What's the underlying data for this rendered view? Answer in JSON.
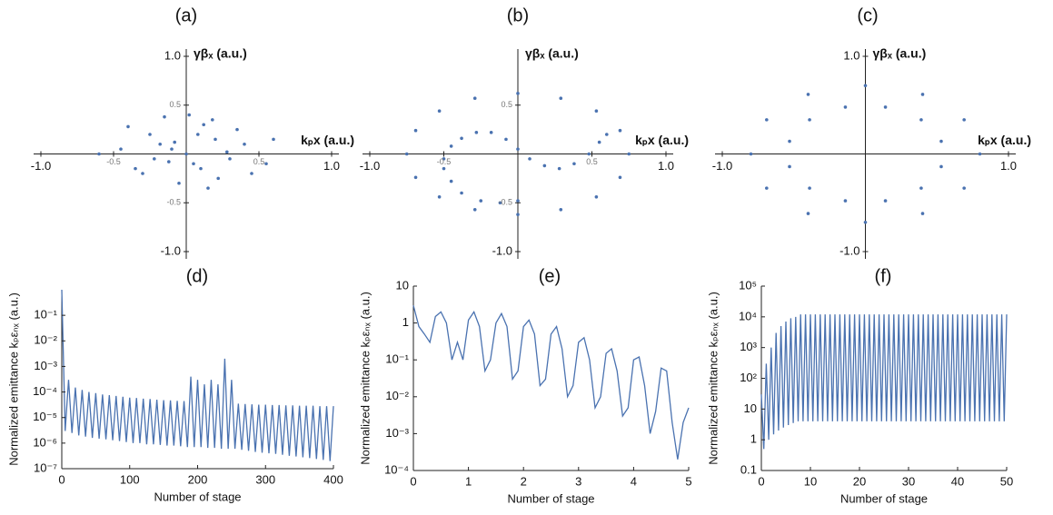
{
  "chart_data": [
    {
      "type": "scatter",
      "title": "(a)",
      "x_label": "kₚx (a.u.)",
      "y_label": "γβₓ (a.u.)",
      "color": "#4a72b0",
      "x": [
        -0.1,
        0.05,
        0.2,
        -0.25,
        0.3,
        -0.35,
        0.12,
        -0.05,
        0.4,
        -0.45,
        0.0,
        0.22,
        -0.18,
        0.08,
        -0.3,
        0.35,
        -0.12,
        0.15,
        -0.6,
        0.55,
        0.02,
        -0.08,
        0.28,
        -0.22,
        0.1,
        -0.4,
        0.45,
        0.18,
        -0.15,
        0.6
      ],
      "values": [
        0.05,
        -0.1,
        0.15,
        0.2,
        -0.05,
        -0.15,
        0.3,
        -0.3,
        0.1,
        0.05,
        0.0,
        -0.25,
        0.1,
        0.2,
        -0.2,
        0.25,
        -0.08,
        -0.35,
        0.0,
        -0.1,
        0.4,
        0.12,
        0.02,
        -0.05,
        -0.15,
        0.28,
        -0.2,
        0.35,
        0.38,
        0.15
      ],
      "xlim": [
        -1,
        1
      ],
      "ylim": [
        -1,
        1
      ],
      "xticks": [
        {
          "value": -1,
          "label": "-1.0"
        },
        {
          "value": -0.5,
          "label": "-0.5"
        },
        {
          "value": 0.5,
          "label": "0.5"
        },
        {
          "value": 1,
          "label": "1.0"
        }
      ],
      "yticks": [
        {
          "value": -1,
          "label": "-1.0"
        },
        {
          "value": -0.5,
          "label": "-0.5"
        },
        {
          "value": 0.5,
          "label": "0.5"
        },
        {
          "value": 1,
          "label": "1.0"
        }
      ]
    },
    {
      "type": "scatter",
      "title": "(b)",
      "x_label": "kₚx (a.u.)",
      "y_label": "γβₓ (a.u.)",
      "color": "#4a72b0",
      "x": [
        -0.5,
        -0.45,
        -0.38,
        -0.28,
        -0.18,
        -0.08,
        0,
        0.08,
        0.18,
        0.28,
        0.38,
        0.48,
        0.55,
        0.6,
        -0.5,
        -0.45,
        -0.38,
        -0.25,
        -0.12,
        0,
        0.75,
        0.69,
        0.53,
        0.29,
        0,
        -0.29,
        -0.53,
        -0.69,
        -0.75,
        -0.69,
        -0.53,
        -0.29,
        0,
        0.29,
        0.53,
        0.69
      ],
      "values": [
        -0.05,
        0.08,
        0.16,
        0.22,
        0.22,
        0.15,
        0.05,
        -0.05,
        -0.12,
        -0.15,
        -0.1,
        0.0,
        0.12,
        0.2,
        -0.15,
        -0.28,
        -0.4,
        -0.48,
        -0.5,
        -0.48,
        0,
        0.24,
        0.44,
        0.57,
        0.62,
        0.57,
        0.44,
        0.24,
        0,
        -0.24,
        -0.44,
        -0.57,
        -0.62,
        -0.57,
        -0.44,
        -0.24
      ],
      "xlim": [
        -1,
        1
      ],
      "ylim": [
        -1,
        1
      ],
      "xticks": [
        {
          "value": -1,
          "label": "-1.0"
        },
        {
          "value": -0.5,
          "label": "-0.5"
        },
        {
          "value": 0.5,
          "label": "0.5"
        },
        {
          "value": 1,
          "label": "1.0"
        }
      ],
      "yticks": [
        {
          "value": -1,
          "label": "-1.0"
        },
        {
          "value": -0.5,
          "label": "-0.5"
        },
        {
          "value": 0.5,
          "label": "0.5"
        }
      ]
    },
    {
      "type": "scatter",
      "title": "(c)",
      "x_label": "kₚx (a.u.)",
      "y_label": "γβₓ (a.u.)",
      "color": "#4a72b0",
      "x": [
        0.8,
        0.69,
        0.4,
        0,
        -0.4,
        -0.69,
        -0.8,
        -0.69,
        -0.4,
        0,
        0.4,
        0.69,
        0.53,
        0.39,
        0.14,
        -0.14,
        -0.39,
        -0.53,
        -0.53,
        -0.39,
        -0.14,
        0.14,
        0.39,
        0.53
      ],
      "values": [
        0,
        0.35,
        0.61,
        0.7,
        0.61,
        0.35,
        0,
        -0.35,
        -0.61,
        -0.7,
        -0.61,
        -0.35,
        0.13,
        0.35,
        0.48,
        0.48,
        0.35,
        0.13,
        -0.13,
        -0.35,
        -0.48,
        -0.48,
        -0.35,
        -0.13
      ],
      "xlim": [
        -1,
        1
      ],
      "ylim": [
        -1,
        1
      ],
      "xticks": [
        {
          "value": -1,
          "label": "-1.0"
        },
        {
          "value": 1,
          "label": "1.0"
        }
      ],
      "yticks": [
        {
          "value": -1,
          "label": "-1.0"
        },
        {
          "value": 1,
          "label": "1.0"
        }
      ]
    },
    {
      "type": "line",
      "title": "(d)",
      "x_label": "Number of stage",
      "y_label": "Normalized emittance kₚεₙₓ (a.u.)",
      "color": "#4a72b0",
      "log_y": true,
      "x": [
        0,
        5,
        10,
        15,
        20,
        25,
        30,
        35,
        40,
        45,
        50,
        55,
        60,
        65,
        70,
        75,
        80,
        85,
        90,
        95,
        100,
        105,
        110,
        115,
        120,
        125,
        130,
        135,
        140,
        145,
        150,
        155,
        160,
        165,
        170,
        175,
        180,
        185,
        190,
        195,
        200,
        205,
        210,
        215,
        220,
        225,
        230,
        235,
        240,
        245,
        250,
        255,
        260,
        265,
        270,
        275,
        280,
        285,
        290,
        295,
        300,
        305,
        310,
        315,
        320,
        325,
        330,
        335,
        340,
        345,
        350,
        355,
        360,
        365,
        370,
        375,
        380,
        385,
        390,
        395,
        400
      ],
      "values": [
        1,
        3e-06,
        0.0003,
        2.5e-06,
        0.00015,
        2e-06,
        0.00012,
        1.8e-06,
        0.0001,
        1.6e-06,
        9e-05,
        1.5e-06,
        8e-05,
        1.4e-06,
        7.5e-05,
        1.3e-06,
        7e-05,
        1.2e-06,
        6.5e-05,
        1.1e-06,
        6e-05,
        1e-06,
        5.8e-05,
        1e-06,
        5.5e-05,
        9e-07,
        5.3e-05,
        9e-07,
        5e-05,
        8.5e-07,
        4.8e-05,
        8e-07,
        4.7e-05,
        8e-07,
        4.5e-05,
        7.5e-07,
        4.4e-05,
        7e-07,
        0.0004,
        7e-07,
        0.0003,
        7e-07,
        0.0002,
        6.5e-07,
        0.0003,
        6.5e-07,
        0.0002,
        6e-07,
        0.002,
        6e-07,
        0.0003,
        6e-07,
        3.5e-05,
        5.5e-07,
        3.4e-05,
        5e-07,
        3.3e-05,
        4.5e-07,
        3.2e-05,
        4.2e-07,
        3.2e-05,
        4e-07,
        3.1e-05,
        3.8e-07,
        3.1e-05,
        3.5e-07,
        3e-05,
        3.2e-07,
        3e-05,
        3e-07,
        2.9e-05,
        2.8e-07,
        2.9e-05,
        2.6e-07,
        2.9e-05,
        2.4e-07,
        2.8e-05,
        2.2e-07,
        2.8e-05,
        2e-07,
        2.8e-05
      ],
      "xlim": [
        0,
        400
      ],
      "ylim": [
        1e-07,
        1
      ],
      "xticks": [
        0,
        100,
        200,
        300,
        400
      ],
      "yticks": [
        {
          "value": 1e-07,
          "label": "10⁻⁷"
        },
        {
          "value": 1e-06,
          "label": "10⁻⁶"
        },
        {
          "value": 1e-05,
          "label": "10⁻⁵"
        },
        {
          "value": 0.0001,
          "label": "10⁻⁴"
        },
        {
          "value": 0.001,
          "label": "10⁻³"
        },
        {
          "value": 0.01,
          "label": "10⁻²"
        },
        {
          "value": 0.1,
          "label": "10⁻¹"
        }
      ]
    },
    {
      "type": "line",
      "title": "(e)",
      "x_label": "Number of stage",
      "y_label": "Normalized emittance kₚεₙₓ (a.u.)",
      "color": "#4a72b0",
      "log_y": true,
      "x": [
        0,
        0.1,
        0.2,
        0.3,
        0.4,
        0.5,
        0.6,
        0.7,
        0.8,
        0.9,
        1,
        1.1,
        1.2,
        1.3,
        1.4,
        1.5,
        1.6,
        1.7,
        1.8,
        1.9,
        2,
        2.1,
        2.2,
        2.3,
        2.4,
        2.5,
        2.6,
        2.7,
        2.8,
        2.9,
        3,
        3.1,
        3.2,
        3.3,
        3.4,
        3.5,
        3.6,
        3.7,
        3.8,
        3.9,
        4,
        4.1,
        4.2,
        4.3,
        4.4,
        4.5,
        4.6,
        4.7,
        4.8,
        4.9,
        5
      ],
      "values": [
        3,
        0.8,
        0.5,
        0.3,
        1.5,
        2,
        1,
        0.1,
        0.3,
        0.1,
        1.2,
        2,
        0.8,
        0.05,
        0.1,
        1,
        1.8,
        0.8,
        0.03,
        0.05,
        0.8,
        1.2,
        0.5,
        0.02,
        0.03,
        0.5,
        0.8,
        0.2,
        0.01,
        0.02,
        0.3,
        0.4,
        0.1,
        0.005,
        0.01,
        0.15,
        0.2,
        0.05,
        0.003,
        0.005,
        0.1,
        0.12,
        0.02,
        0.001,
        0.004,
        0.06,
        0.05,
        0.002,
        0.0002,
        0.002,
        0.005
      ],
      "xlim": [
        0,
        5
      ],
      "ylim": [
        0.0001,
        10
      ],
      "xticks": [
        0,
        1,
        2,
        3,
        4,
        5
      ],
      "yticks": [
        {
          "value": 0.0001,
          "label": "10⁻⁴"
        },
        {
          "value": 0.001,
          "label": "10⁻³"
        },
        {
          "value": 0.01,
          "label": "10⁻²"
        },
        {
          "value": 0.1,
          "label": "10⁻¹"
        },
        1,
        10
      ]
    },
    {
      "type": "line",
      "title": "(f)",
      "x_label": "Number of stage",
      "y_label": "Normalized emittance kₚεₙₓ (a.u.)",
      "color": "#4a72b0",
      "log_y": true,
      "x": [
        0,
        0.5,
        1,
        1.5,
        2,
        2.5,
        3,
        3.5,
        4,
        4.5,
        5,
        5.5,
        6,
        6.5,
        7,
        7.5,
        8,
        8.5,
        9,
        9.5,
        10,
        10.5,
        11,
        11.5,
        12,
        12.5,
        13,
        13.5,
        14,
        14.5,
        15,
        15.5,
        16,
        16.5,
        17,
        17.5,
        18,
        18.5,
        19,
        19.5,
        20,
        20.5,
        21,
        21.5,
        22,
        22.5,
        23,
        23.5,
        24,
        24.5,
        25,
        25.5,
        26,
        26.5,
        27,
        27.5,
        28,
        28.5,
        29,
        29.5,
        30,
        30.5,
        31,
        31.5,
        32,
        32.5,
        33,
        33.5,
        34,
        34.5,
        35,
        35.5,
        36,
        36.5,
        37,
        37.5,
        38,
        38.5,
        39,
        39.5,
        40,
        40.5,
        41,
        41.5,
        42,
        42.5,
        43,
        43.5,
        44,
        44.5,
        45,
        45.5,
        46,
        46.5,
        47,
        47.5,
        48,
        48.5,
        49,
        49.5,
        50
      ],
      "values": [
        30,
        0.5,
        300,
        1,
        1000,
        1.5,
        3000,
        2,
        5000,
        2.5,
        7000,
        3,
        9000,
        3.5,
        10000,
        4,
        12000,
        4,
        12000,
        4,
        12000,
        4,
        12000,
        4,
        12000,
        4,
        12000,
        4,
        12000,
        4,
        12000,
        4,
        12000,
        4,
        12000,
        4,
        12000,
        4,
        12000,
        4,
        12000,
        4,
        12000,
        4,
        12000,
        4,
        12000,
        4,
        12000,
        4,
        12000,
        4,
        12000,
        4,
        12000,
        4,
        12000,
        4,
        12000,
        4,
        12000,
        4,
        12000,
        4,
        12000,
        4,
        12000,
        4,
        12000,
        4,
        12000,
        4,
        12000,
        4,
        12000,
        4,
        12000,
        4,
        12000,
        4,
        12000,
        4,
        12000,
        4,
        12000,
        4,
        12000,
        4,
        12000,
        4,
        12000,
        4,
        12000,
        4,
        12000,
        4,
        12000,
        4,
        12000,
        4,
        12000
      ],
      "xlim": [
        0,
        50
      ],
      "ylim": [
        0.1,
        100000
      ],
      "xticks": [
        0,
        10,
        20,
        30,
        40,
        50
      ],
      "yticks": [
        0.1,
        1,
        10,
        {
          "value": 100,
          "label": "10²"
        },
        {
          "value": 1000,
          "label": "10³"
        },
        {
          "value": 10000,
          "label": "10⁴"
        },
        {
          "value": 100000,
          "label": "10⁵"
        }
      ]
    }
  ]
}
